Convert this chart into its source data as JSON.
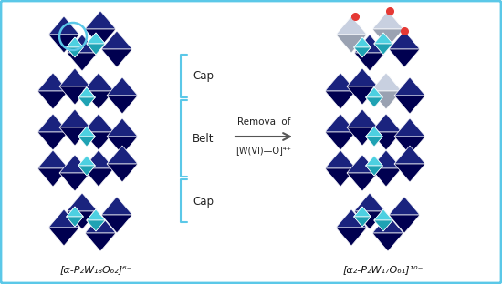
{
  "bg_color": "#ffffff",
  "border_color": "#5bc8e8",
  "title_left": "[α-P₂W₁₈O₆₂]⁶⁻",
  "title_right": "[α₂-P₂W₁₇O₆₁]¹⁰⁻",
  "label_cap_top": "Cap",
  "label_belt": "Belt",
  "label_cap_bottom": "Cap",
  "arrow_label_top": "Removal of",
  "arrow_label_bottom": "[W(VI)—O]⁴⁺",
  "dark_blue": "#1a237e",
  "medium_blue": "#283593",
  "light_blue_poly": "#4dd0e1",
  "white_poly": "#c8d0e0",
  "bracket_color": "#5bc8e8",
  "red_dot": "#e53935",
  "arrow_color": "#555555"
}
